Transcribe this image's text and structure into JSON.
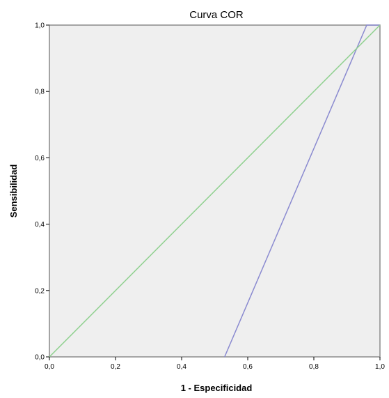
{
  "chart_data": {
    "type": "line",
    "title": "Curva COR",
    "xlabel": "1 - Especificidad",
    "ylabel": "Sensibilidad",
    "xlim": [
      0,
      1
    ],
    "ylim": [
      0,
      1
    ],
    "x_ticks": [
      "0,0",
      "0,2",
      "0,4",
      "0,6",
      "0,8",
      "1,0"
    ],
    "y_ticks": [
      "0,0",
      "0,2",
      "0,4",
      "0,6",
      "0,8",
      "1,0"
    ],
    "grid": false,
    "legend": "none",
    "series": [
      {
        "color": "#8a8ad0",
        "points": [
          [
            0.53,
            0.0
          ],
          [
            0.96,
            1.0
          ],
          [
            1.0,
            1.0
          ]
        ]
      },
      {
        "color": "#8fd08f",
        "points": [
          [
            0.0,
            0.0
          ],
          [
            1.0,
            1.0
          ]
        ]
      }
    ]
  }
}
